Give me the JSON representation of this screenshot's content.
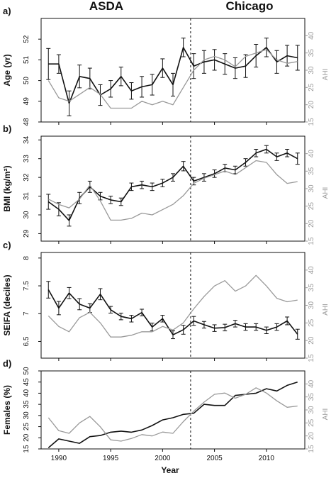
{
  "figure": {
    "header_left": "ASDA",
    "header_right": "Chicago",
    "xlabel": "Year",
    "x_ticks": [
      1990,
      1995,
      2000,
      2005,
      2010
    ],
    "divider_year": 2002.7,
    "colors": {
      "primary": "#111111",
      "ahi": "#999999"
    }
  },
  "chart_data": [
    {
      "type": "line",
      "panel_label": "a)",
      "ylabel": "Age (yr)",
      "ylabel_right": "AHI",
      "ylim": [
        48,
        53
      ],
      "yticks": [
        48,
        49,
        50,
        51,
        52
      ],
      "y2lim": [
        15,
        45
      ],
      "y2ticks": [
        15,
        20,
        25,
        30,
        35,
        40
      ],
      "x": [
        1989,
        1990,
        1991,
        1992,
        1993,
        1994,
        1995,
        1996,
        1997,
        1998,
        1999,
        2000,
        2001,
        2002,
        2003,
        2004,
        2005,
        2006,
        2007,
        2008,
        2009,
        2010,
        2011,
        2012,
        2013
      ],
      "series": [
        {
          "axis": "left",
          "values": [
            50.8,
            50.8,
            48.9,
            50.2,
            50.1,
            49.3,
            49.6,
            50.2,
            49.5,
            49.7,
            49.8,
            50.6,
            49.8,
            51.6,
            50.7,
            50.9,
            51.0,
            50.8,
            50.6,
            50.7,
            51.2,
            51.6,
            50.9,
            51.2,
            51.1
          ],
          "err": [
            0.75,
            0.45,
            0.6,
            0.55,
            0.5,
            0.5,
            0.4,
            0.45,
            0.4,
            0.5,
            0.5,
            0.45,
            0.55,
            0.45,
            0.6,
            0.55,
            0.5,
            0.5,
            0.5,
            0.55,
            0.55,
            0.45,
            0.55,
            0.5,
            0.6
          ]
        },
        {
          "axis": "right",
          "values": [
            27,
            22,
            21,
            23,
            25,
            23,
            19,
            19,
            19,
            21,
            20,
            21,
            20,
            25,
            30,
            33,
            34,
            33,
            31,
            34,
            35,
            36,
            33,
            32,
            32.5
          ]
        }
      ]
    },
    {
      "type": "line",
      "panel_label": "b)",
      "ylabel": "BMI (kg/m²)",
      "ylabel_right": "AHI",
      "ylim": [
        28.6,
        34.2
      ],
      "yticks": [
        29,
        30,
        31,
        32,
        33,
        34
      ],
      "y2lim": [
        15,
        45
      ],
      "y2ticks": [
        15,
        20,
        25,
        30,
        35,
        40
      ],
      "x": [
        1989,
        1990,
        1991,
        1992,
        1993,
        1994,
        1995,
        1996,
        1997,
        1998,
        1999,
        2000,
        2001,
        2002,
        2003,
        2004,
        2005,
        2006,
        2007,
        2008,
        2009,
        2010,
        2011,
        2012,
        2013
      ],
      "series": [
        {
          "axis": "left",
          "values": [
            30.7,
            30.3,
            29.7,
            30.9,
            31.5,
            31.0,
            30.8,
            30.7,
            31.5,
            31.6,
            31.5,
            31.7,
            32.0,
            32.6,
            31.8,
            32.0,
            32.2,
            32.5,
            32.4,
            32.8,
            33.3,
            33.5,
            33.1,
            33.3,
            33.0
          ],
          "err": [
            0.4,
            0.35,
            0.3,
            0.3,
            0.3,
            0.2,
            0.2,
            0.2,
            0.2,
            0.2,
            0.2,
            0.2,
            0.2,
            0.25,
            0.2,
            0.2,
            0.2,
            0.2,
            0.2,
            0.2,
            0.2,
            0.2,
            0.2,
            0.2,
            0.3
          ]
        },
        {
          "axis": "right",
          "values": [
            27,
            25.5,
            24.5,
            27,
            31,
            26.5,
            21,
            21,
            21.5,
            23,
            22.5,
            24,
            25.5,
            28,
            31.5,
            33,
            34,
            35,
            34,
            36,
            38,
            37.5,
            34,
            31.5,
            32
          ]
        }
      ]
    },
    {
      "type": "line",
      "panel_label": "c)",
      "ylabel": "SEIFA (deciles)",
      "ylabel_right": "AHI",
      "ylim": [
        6.2,
        8.1
      ],
      "yticks": [
        6.5,
        7.0,
        7.5,
        8.0
      ],
      "y2lim": [
        15,
        45
      ],
      "y2ticks": [
        15,
        20,
        25,
        30,
        35,
        40
      ],
      "x": [
        1989,
        1990,
        1991,
        1992,
        1993,
        1994,
        1995,
        1996,
        1997,
        1998,
        1999,
        2000,
        2001,
        2002,
        2003,
        2004,
        2005,
        2006,
        2007,
        2008,
        2009,
        2010,
        2011,
        2012,
        2013
      ],
      "series": [
        {
          "axis": "left",
          "values": [
            7.43,
            7.1,
            7.37,
            7.17,
            7.1,
            7.35,
            7.07,
            6.95,
            6.91,
            7.02,
            6.76,
            6.91,
            6.62,
            6.71,
            6.87,
            6.8,
            6.74,
            6.75,
            6.82,
            6.76,
            6.76,
            6.7,
            6.76,
            6.87,
            6.63
          ],
          "err": [
            0.15,
            0.12,
            0.1,
            0.1,
            0.08,
            0.1,
            0.06,
            0.06,
            0.06,
            0.06,
            0.07,
            0.06,
            0.07,
            0.08,
            0.08,
            0.06,
            0.06,
            0.06,
            0.06,
            0.06,
            0.06,
            0.06,
            0.06,
            0.07,
            0.09
          ]
        },
        {
          "axis": "right",
          "values": [
            27,
            24,
            22.5,
            26.5,
            28,
            25,
            21,
            21,
            21.5,
            22.5,
            22.5,
            24,
            23,
            25,
            29,
            32.5,
            35.5,
            37,
            34,
            35.5,
            38.5,
            35.5,
            32,
            31,
            31.5
          ]
        }
      ]
    },
    {
      "type": "line",
      "panel_label": "d)",
      "ylabel": "Females (%)",
      "ylabel_right": "AHI",
      "ylim": [
        15,
        50
      ],
      "yticks": [
        15,
        20,
        25,
        30,
        35,
        40,
        45,
        50
      ],
      "y2lim": [
        15,
        45
      ],
      "y2ticks": [
        15,
        20,
        25,
        30,
        35,
        40
      ],
      "x": [
        1989,
        1990,
        1991,
        1992,
        1993,
        1994,
        1995,
        1996,
        1997,
        1998,
        1999,
        2000,
        2001,
        2002,
        2003,
        2004,
        2005,
        2006,
        2007,
        2008,
        2009,
        2010,
        2011,
        2012,
        2013
      ],
      "series": [
        {
          "axis": "left",
          "values": [
            15.5,
            19.5,
            18.5,
            17.5,
            20.5,
            21,
            22.5,
            23,
            22.5,
            23.5,
            25.5,
            28,
            29,
            30.5,
            31,
            35,
            34.5,
            34.5,
            39,
            39.5,
            40,
            42,
            41,
            43.5,
            45
          ]
        },
        {
          "axis": "right",
          "values": [
            27,
            22,
            21,
            25,
            27.5,
            23.5,
            18.5,
            18,
            19,
            20.5,
            20,
            21.5,
            21,
            25.5,
            29.5,
            33,
            36,
            36.5,
            34.5,
            36,
            38.5,
            36.5,
            33.5,
            31,
            31.5
          ]
        }
      ]
    }
  ]
}
